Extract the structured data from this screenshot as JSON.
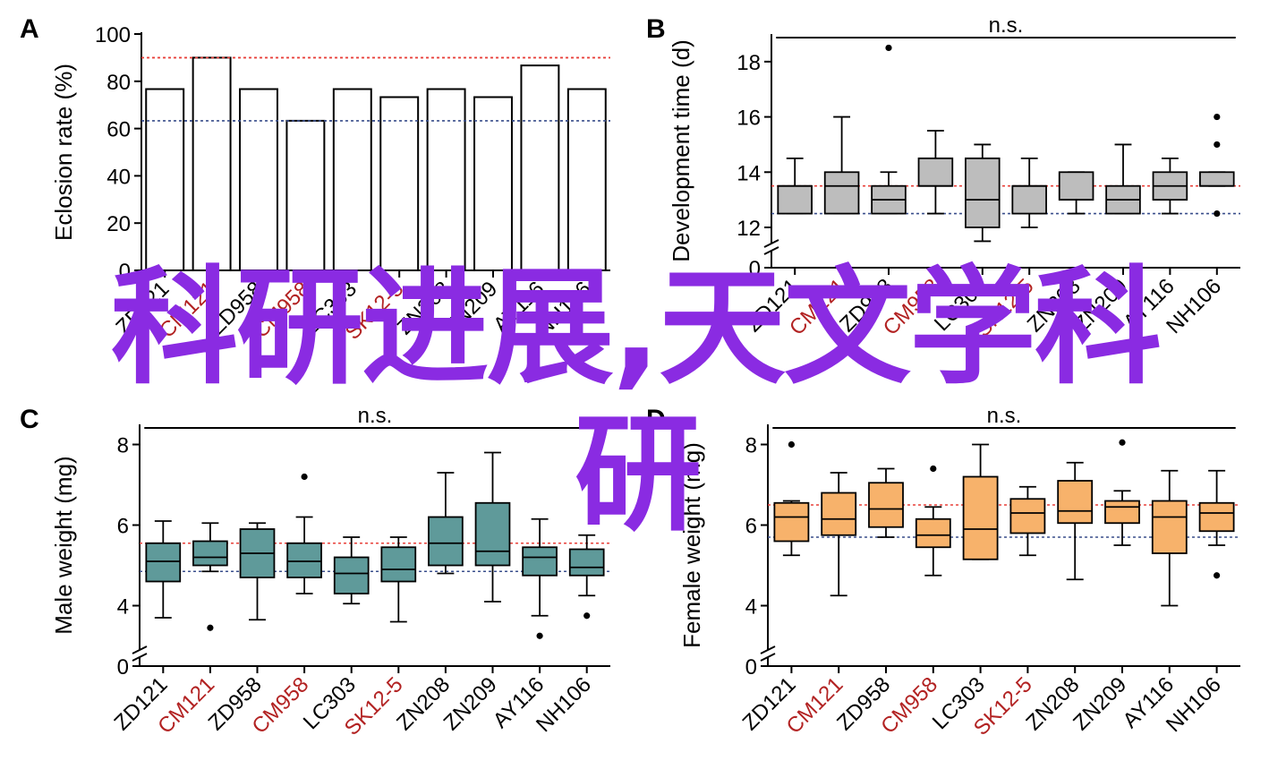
{
  "overlay": {
    "line1": "科研进展,天文学科",
    "line2": "研"
  },
  "colors": {
    "ref_high": "#e8403a",
    "ref_low": "#3a4f8c",
    "highlight": "#b22222",
    "normal": "#000000",
    "box_B": "#bdbdbd",
    "box_C": "#5f9a9a",
    "box_D": "#f7b26b"
  },
  "chart_data": [
    {
      "panel": "A",
      "type": "bar",
      "ylabel": "Eclosion rate (%)",
      "ylim": [
        0,
        100
      ],
      "yticks": [
        0,
        20,
        40,
        60,
        80,
        100
      ],
      "categories": [
        "ZD121",
        "CM121",
        "ZD958",
        "CM958",
        "LC303",
        "SK12-5",
        "ZN208",
        "ZN209",
        "AY116",
        "NH106"
      ],
      "highlighted": [
        "CM121",
        "CM958",
        "SK12-5"
      ],
      "values": [
        76.7,
        90,
        76.7,
        63.3,
        76.7,
        73.3,
        76.7,
        73.3,
        86.7,
        76.7
      ],
      "ref_lines": [
        90,
        63.3
      ]
    },
    {
      "panel": "B",
      "type": "box",
      "ylabel": "Development time (d)",
      "ylim": [
        12,
        19
      ],
      "yticks": [
        12,
        14,
        16,
        18
      ],
      "axis_break": true,
      "break_label": "0",
      "sig_label": "n.s.",
      "categories": [
        "ZD121",
        "CM121",
        "ZD958",
        "CM958",
        "LC303",
        "SK12-5",
        "ZN208",
        "ZN209",
        "AY116",
        "NH106"
      ],
      "highlighted": [
        "CM121",
        "CM958",
        "SK12-5"
      ],
      "boxes": [
        {
          "lo": 12.5,
          "q1": 12.5,
          "med": 13.5,
          "q3": 13.5,
          "hi": 14.5,
          "out": []
        },
        {
          "lo": 12.5,
          "q1": 12.5,
          "med": 13.5,
          "q3": 14.0,
          "hi": 16.0,
          "out": []
        },
        {
          "lo": 12.5,
          "q1": 12.5,
          "med": 13.0,
          "q3": 13.5,
          "hi": 14.0,
          "out": [
            18.5
          ]
        },
        {
          "lo": 12.5,
          "q1": 13.5,
          "med": 13.5,
          "q3": 14.5,
          "hi": 15.5,
          "out": []
        },
        {
          "lo": 11.5,
          "q1": 12.0,
          "med": 13.0,
          "q3": 14.5,
          "hi": 15.0,
          "out": []
        },
        {
          "lo": 12.0,
          "q1": 12.5,
          "med": 13.5,
          "q3": 13.5,
          "hi": 14.5,
          "out": []
        },
        {
          "lo": 12.5,
          "q1": 13.0,
          "med": 13.0,
          "q3": 14.0,
          "hi": 14.0,
          "out": []
        },
        {
          "lo": 12.5,
          "q1": 12.5,
          "med": 13.0,
          "q3": 13.5,
          "hi": 15.0,
          "out": []
        },
        {
          "lo": 12.5,
          "q1": 13.0,
          "med": 13.5,
          "q3": 14.0,
          "hi": 14.5,
          "out": []
        },
        {
          "lo": 13.5,
          "q1": 13.5,
          "med": 13.5,
          "q3": 14.0,
          "hi": 14.0,
          "out": [
            16.0,
            15.0,
            12.5
          ]
        }
      ],
      "ref_lines": [
        13.5,
        12.5
      ]
    },
    {
      "panel": "C",
      "type": "box",
      "ylabel": "Male weight (mg)",
      "ylim": [
        3.3,
        8.5
      ],
      "yticks": [
        4,
        6,
        8
      ],
      "axis_break": true,
      "break_label": "0",
      "sig_label": "n.s.",
      "categories": [
        "ZD121",
        "CM121",
        "ZD958",
        "CM958",
        "LC303",
        "SK12-5",
        "ZN208",
        "ZN209",
        "AY116",
        "NH106"
      ],
      "highlighted": [
        "CM121",
        "CM958",
        "SK12-5"
      ],
      "boxes": [
        {
          "lo": 3.7,
          "q1": 4.6,
          "med": 5.1,
          "q3": 5.55,
          "hi": 6.1,
          "out": []
        },
        {
          "lo": 4.85,
          "q1": 5.0,
          "med": 5.2,
          "q3": 5.6,
          "hi": 6.05,
          "out": [
            3.45
          ]
        },
        {
          "lo": 3.65,
          "q1": 4.7,
          "med": 5.3,
          "q3": 5.9,
          "hi": 6.05,
          "out": []
        },
        {
          "lo": 4.3,
          "q1": 4.7,
          "med": 5.1,
          "q3": 5.55,
          "hi": 6.2,
          "out": [
            7.2
          ]
        },
        {
          "lo": 4.05,
          "q1": 4.3,
          "med": 4.8,
          "q3": 5.2,
          "hi": 5.7,
          "out": []
        },
        {
          "lo": 3.6,
          "q1": 4.6,
          "med": 4.9,
          "q3": 5.45,
          "hi": 5.7,
          "out": []
        },
        {
          "lo": 4.8,
          "q1": 5.0,
          "med": 5.55,
          "q3": 6.2,
          "hi": 7.3,
          "out": []
        },
        {
          "lo": 4.1,
          "q1": 5.0,
          "med": 5.35,
          "q3": 6.55,
          "hi": 7.8,
          "out": []
        },
        {
          "lo": 3.75,
          "q1": 4.75,
          "med": 5.2,
          "q3": 5.45,
          "hi": 6.15,
          "out": [
            3.25
          ]
        },
        {
          "lo": 4.25,
          "q1": 4.75,
          "med": 4.95,
          "q3": 5.4,
          "hi": 5.75,
          "out": [
            3.75
          ]
        }
      ],
      "ref_lines": [
        5.55,
        4.85
      ]
    },
    {
      "panel": "D",
      "type": "box",
      "ylabel": "Female weight (mg)",
      "ylim": [
        3.3,
        8.5
      ],
      "yticks": [
        4,
        6,
        8
      ],
      "axis_break": true,
      "break_label": "0",
      "sig_label": "n.s.",
      "categories": [
        "ZD121",
        "CM121",
        "ZD958",
        "CM958",
        "LC303",
        "SK12-5",
        "ZN208",
        "ZN209",
        "AY116",
        "NH106"
      ],
      "highlighted": [
        "CM121",
        "CM958",
        "SK12-5"
      ],
      "boxes": [
        {
          "lo": 5.25,
          "q1": 5.6,
          "med": 6.2,
          "q3": 6.55,
          "hi": 6.6,
          "out": [
            8.0
          ]
        },
        {
          "lo": 4.25,
          "q1": 5.75,
          "med": 6.15,
          "q3": 6.8,
          "hi": 7.3,
          "out": []
        },
        {
          "lo": 5.7,
          "q1": 5.95,
          "med": 6.4,
          "q3": 7.05,
          "hi": 7.4,
          "out": []
        },
        {
          "lo": 4.75,
          "q1": 5.45,
          "med": 5.75,
          "q3": 6.15,
          "hi": 6.45,
          "out": [
            7.4
          ]
        },
        {
          "lo": 5.15,
          "q1": 5.15,
          "med": 5.9,
          "q3": 7.2,
          "hi": 8.0,
          "out": []
        },
        {
          "lo": 5.25,
          "q1": 5.8,
          "med": 6.3,
          "q3": 6.65,
          "hi": 6.95,
          "out": []
        },
        {
          "lo": 4.65,
          "q1": 6.05,
          "med": 6.35,
          "q3": 7.1,
          "hi": 7.55,
          "out": []
        },
        {
          "lo": 5.5,
          "q1": 6.05,
          "med": 6.45,
          "q3": 6.6,
          "hi": 6.85,
          "out": [
            8.05
          ]
        },
        {
          "lo": 4.0,
          "q1": 5.3,
          "med": 6.2,
          "q3": 6.6,
          "hi": 7.35,
          "out": []
        },
        {
          "lo": 5.5,
          "q1": 5.85,
          "med": 6.3,
          "q3": 6.55,
          "hi": 7.35,
          "out": [
            4.75
          ]
        }
      ],
      "ref_lines": [
        6.5,
        5.7
      ]
    }
  ],
  "panel_letters": [
    "A",
    "B",
    "C",
    "D"
  ]
}
